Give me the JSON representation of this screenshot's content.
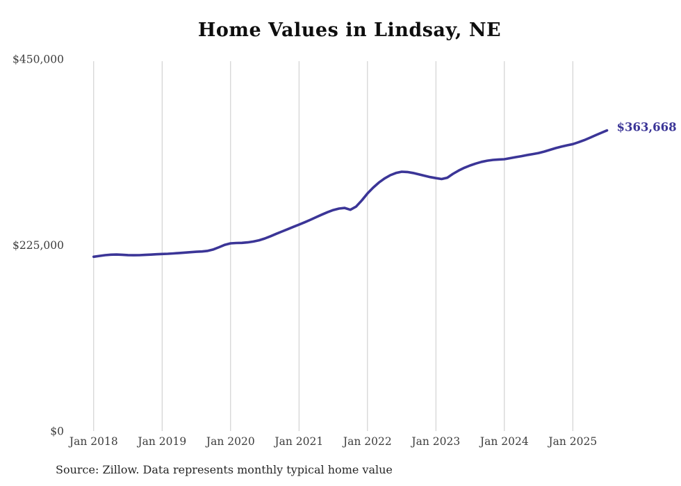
{
  "page": {
    "background": "#ffffff"
  },
  "chart_data": {
    "type": "line",
    "title": "Home Values in Lindsay, NE",
    "series_name": "Monthly typical home value",
    "unit": "USD",
    "frequency": "monthly",
    "x_start": "Jan 2018",
    "x_end": "Jul 2025",
    "x_tick_labels": [
      "Jan 2018",
      "Jan 2019",
      "Jan 2020",
      "Jan 2021",
      "Jan 2022",
      "Jan 2023",
      "Jan 2024",
      "Jan 2025"
    ],
    "y_ticks": [
      {
        "label": "$450,000",
        "value": 450000
      },
      {
        "label": "$225,000",
        "value": 225000
      },
      {
        "label": "$0",
        "value": 0
      }
    ],
    "ylim": [
      0,
      450000
    ],
    "grid": "vertical-only",
    "legend": "none",
    "line_color": "#3b3597",
    "gridline_color": "#c9c9c9",
    "tick_label_color": "#3d3d3d",
    "end_label": "$363,668",
    "end_value": 363668,
    "values": [
      210900,
      211900,
      212800,
      213400,
      213600,
      213300,
      212900,
      212700,
      212800,
      213100,
      213500,
      213900,
      214200,
      214500,
      214900,
      215400,
      215900,
      216400,
      216900,
      217300,
      218000,
      219800,
      222500,
      225300,
      227100,
      227500,
      227700,
      228300,
      229300,
      230800,
      233000,
      235700,
      238600,
      241400,
      244200,
      247000,
      249700,
      252600,
      255600,
      258700,
      261800,
      264800,
      267400,
      269200,
      269900,
      267700,
      271500,
      279000,
      287400,
      294500,
      300600,
      305600,
      309500,
      312200,
      313700,
      313400,
      312200,
      310600,
      308900,
      307300,
      306000,
      304900,
      306500,
      311200,
      315200,
      318500,
      321300,
      323700,
      325700,
      327100,
      328000,
      328500,
      328900,
      330100,
      331400,
      332600,
      333900,
      335100,
      336400,
      338100,
      340200,
      342300,
      344100,
      345700,
      347100,
      349400,
      351900,
      354900,
      357900,
      360800,
      363668
    ]
  },
  "footer": {
    "source_text": "Source: Zillow. Data represents monthly typical home value"
  }
}
